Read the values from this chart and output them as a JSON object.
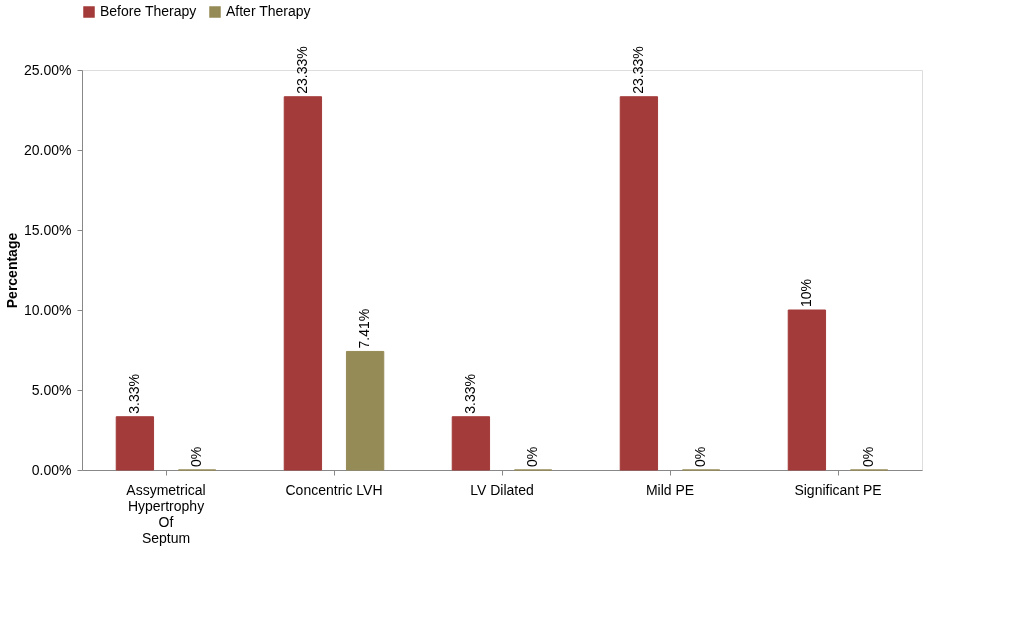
{
  "chart_data": {
    "type": "bar",
    "ylabel": "Percentage",
    "categories": [
      "Assymetrical Hypertrophy Of Septum",
      "Concentric LVH",
      "LV Dilated",
      "Mild PE",
      "Significant PE"
    ],
    "series": [
      {
        "name": "Before Therapy",
        "color": "#a33b3a",
        "values": [
          3.33,
          23.33,
          3.33,
          23.33,
          10
        ],
        "value_labels": [
          "3.33%",
          "23.33%",
          "3.33%",
          "23.33%",
          "10%"
        ]
      },
      {
        "name": "After Therapy",
        "color": "#958b56",
        "values": [
          0,
          7.41,
          0,
          0,
          0
        ],
        "value_labels": [
          "0%",
          "7.41%",
          "0%",
          "0%",
          "0%"
        ]
      }
    ],
    "ylim": [
      0,
      25
    ],
    "yticks": [
      {
        "value": 0,
        "label": "0.00%"
      },
      {
        "value": 5,
        "label": "5.00%"
      },
      {
        "value": 10,
        "label": "10.00%"
      },
      {
        "value": 15,
        "label": "15.00%"
      },
      {
        "value": 20,
        "label": "20.00%"
      },
      {
        "value": 25,
        "label": "25.00%"
      }
    ],
    "grid": false,
    "legend": "top"
  }
}
